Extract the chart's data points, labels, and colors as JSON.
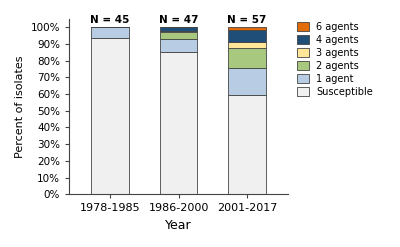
{
  "categories": [
    "1978-1985",
    "1986-2000",
    "2001-2017"
  ],
  "n_labels": [
    "N = 45",
    "N = 47",
    "N = 57"
  ],
  "segments": {
    "Susceptible": [
      93.33,
      85.11,
      59.65
    ],
    "1 agent": [
      6.67,
      7.45,
      15.79
    ],
    "2 agents": [
      0.0,
      4.26,
      12.28
    ],
    "3 agents": [
      0.0,
      1.06,
      3.51
    ],
    "4 agents": [
      0.0,
      2.13,
      7.02
    ],
    "6 agents": [
      0.0,
      0.0,
      1.75
    ]
  },
  "colors": {
    "Susceptible": "#f0f0f0",
    "1 agent": "#b8cce4",
    "2 agents": "#a9c87f",
    "3 agents": "#ffe699",
    "4 agents": "#1f4e79",
    "6 agents": "#e26b0a"
  },
  "xlabel": "Year",
  "ylabel": "Percent of isolates",
  "ylim": [
    0,
    105
  ],
  "yticks": [
    0,
    10,
    20,
    30,
    40,
    50,
    60,
    70,
    80,
    90,
    100
  ],
  "yticklabels": [
    "0%",
    "10%",
    "20%",
    "30%",
    "40%",
    "50%",
    "60%",
    "70%",
    "80%",
    "90%",
    "100%"
  ],
  "bar_width": 0.55,
  "figsize": [
    4.0,
    2.47
  ],
  "dpi": 100,
  "legend_order": [
    "6 agents",
    "4 agents",
    "3 agents",
    "2 agents",
    "1 agent",
    "Susceptible"
  ]
}
